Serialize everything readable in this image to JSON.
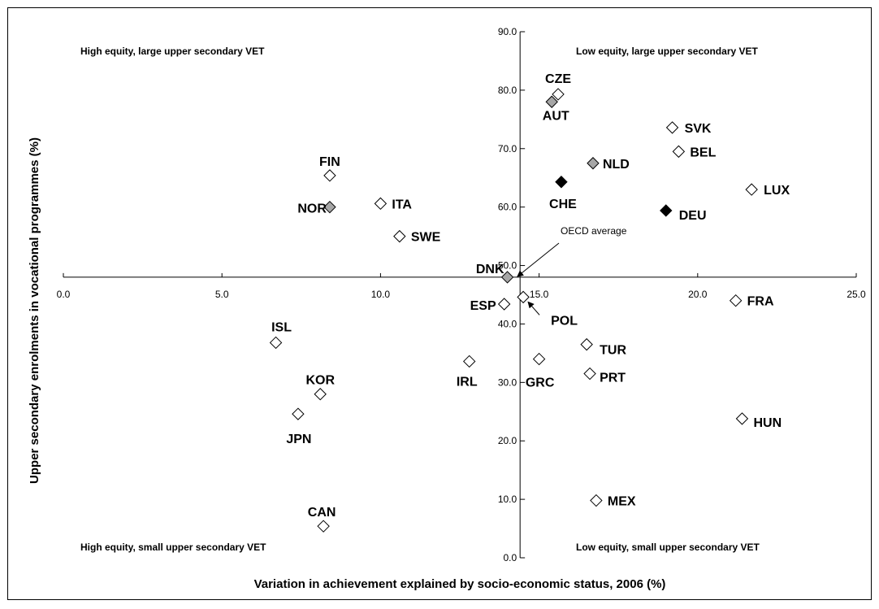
{
  "chart_data": {
    "type": "scatter",
    "title": "",
    "xlabel": "Variation in achievement explained by socio-economic status, 2006 (%)",
    "ylabel": "Upper secondary enrolments in vocational programmes (%)",
    "xlim": [
      0,
      25
    ],
    "ylim": [
      0,
      90
    ],
    "x_ticks": [
      "0.0",
      "5.0",
      "10.0",
      "15.0",
      "20.0",
      "25.0"
    ],
    "y_ticks": [
      "0.0",
      "10.0",
      "20.0",
      "30.0",
      "40.0",
      "50.0",
      "60.0",
      "70.0",
      "80.0",
      "90.0"
    ],
    "origin_crossing": {
      "x": 14.4,
      "y": 48
    },
    "quadrant_labels": {
      "top_left": "High equity, large upper secondary VET",
      "top_right": "Low equity, large upper secondary VET",
      "bottom_left": "High equity, small upper secondary VET",
      "bottom_right": "Low equity, small upper secondary VET"
    },
    "annotation": "OECD average",
    "colors": {
      "open": "#ffffff",
      "grey": "#a6a6a6",
      "black": "#000000"
    },
    "points": [
      {
        "label": "CZE",
        "x": 15.6,
        "y": 79.3,
        "style": "open"
      },
      {
        "label": "AUT",
        "x": 15.4,
        "y": 78.0,
        "style": "grey"
      },
      {
        "label": "SVK",
        "x": 19.2,
        "y": 73.6,
        "style": "open"
      },
      {
        "label": "BEL",
        "x": 19.4,
        "y": 69.5,
        "style": "open"
      },
      {
        "label": "NLD",
        "x": 16.7,
        "y": 67.5,
        "style": "grey"
      },
      {
        "label": "CHE",
        "x": 15.7,
        "y": 64.3,
        "style": "black"
      },
      {
        "label": "LUX",
        "x": 21.7,
        "y": 63.0,
        "style": "open"
      },
      {
        "label": "DEU",
        "x": 19.0,
        "y": 59.4,
        "style": "black"
      },
      {
        "label": "FIN",
        "x": 8.4,
        "y": 65.4,
        "style": "open"
      },
      {
        "label": "NOR",
        "x": 8.4,
        "y": 60.0,
        "style": "grey"
      },
      {
        "label": "ITA",
        "x": 10.0,
        "y": 60.6,
        "style": "open"
      },
      {
        "label": "SWE",
        "x": 10.6,
        "y": 55.0,
        "style": "open"
      },
      {
        "label": "DNK",
        "x": 14.0,
        "y": 48.0,
        "style": "grey"
      },
      {
        "label": "ESP",
        "x": 13.9,
        "y": 43.4,
        "style": "open"
      },
      {
        "label": "POL",
        "x": 14.5,
        "y": 44.6,
        "style": "open"
      },
      {
        "label": "FRA",
        "x": 21.2,
        "y": 44.0,
        "style": "open"
      },
      {
        "label": "ISL",
        "x": 6.7,
        "y": 36.8,
        "style": "open"
      },
      {
        "label": "TUR",
        "x": 16.5,
        "y": 36.5,
        "style": "open"
      },
      {
        "label": "IRL",
        "x": 12.8,
        "y": 33.6,
        "style": "open"
      },
      {
        "label": "GRC",
        "x": 15.0,
        "y": 34.0,
        "style": "open"
      },
      {
        "label": "PRT",
        "x": 16.6,
        "y": 31.5,
        "style": "open"
      },
      {
        "label": "KOR",
        "x": 8.1,
        "y": 28.0,
        "style": "open"
      },
      {
        "label": "JPN",
        "x": 7.4,
        "y": 24.6,
        "style": "open"
      },
      {
        "label": "HUN",
        "x": 21.4,
        "y": 23.8,
        "style": "open"
      },
      {
        "label": "MEX",
        "x": 16.8,
        "y": 9.8,
        "style": "open"
      },
      {
        "label": "CAN",
        "x": 8.2,
        "y": 5.4,
        "style": "open"
      }
    ]
  }
}
